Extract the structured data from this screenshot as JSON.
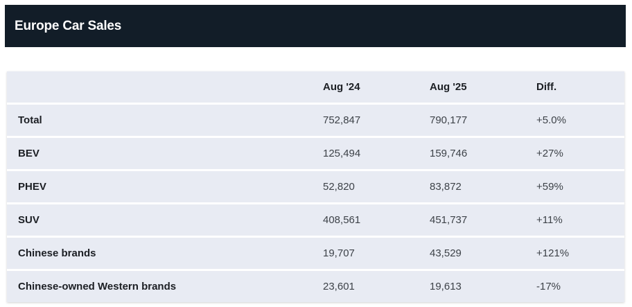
{
  "header": {
    "title": "Europe Car Sales"
  },
  "table": {
    "columns": [
      "",
      "Aug '24",
      "Aug '25",
      "Diff."
    ],
    "rows": [
      {
        "label": "Total",
        "aug24": "752,847",
        "aug25": "790,177",
        "diff": "+5.0%"
      },
      {
        "label": "BEV",
        "aug24": "125,494",
        "aug25": "159,746",
        "diff": "+27%"
      },
      {
        "label": "PHEV",
        "aug24": "52,820",
        "aug25": "83,872",
        "diff": "+59%"
      },
      {
        "label": "SUV",
        "aug24": "408,561",
        "aug25": "451,737",
        "diff": "+11%"
      },
      {
        "label": "Chinese brands",
        "aug24": "19,707",
        "aug25": "43,529",
        "diff": "+121%"
      },
      {
        "label": "Chinese-owned Western brands",
        "aug24": "23,601",
        "aug25": "19,613",
        "diff": "-17%"
      }
    ]
  },
  "colors": {
    "header_bg": "#121d28",
    "row_bg": "#e8ebf3",
    "text": "#1c1f24"
  }
}
